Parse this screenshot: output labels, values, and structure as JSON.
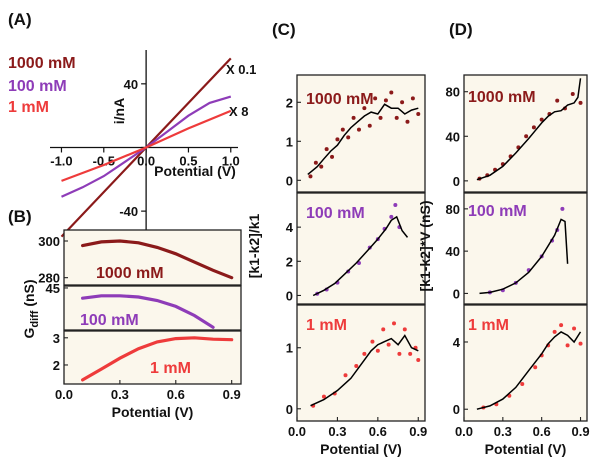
{
  "colors": {
    "c1000": "#8b1a1a",
    "c100": "#8e3cb8",
    "c1": "#ee3b3b",
    "fit": "#000000",
    "panel_bg": "#fbf7ec"
  },
  "chart_data": [
    {
      "panel": "(A)",
      "type": "line",
      "xlabel": "Potential (V)",
      "ylabel": "i/nA",
      "xlim": [
        -1.1,
        1.05
      ],
      "ylim": [
        -55,
        60
      ],
      "xticks": [
        -1.0,
        -0.5,
        0.0,
        0.5,
        1.0
      ],
      "xtick_labels": [
        "-1.0",
        "-0.5",
        "0.0",
        "0.5",
        "1.0"
      ],
      "yticks": [
        -40,
        0,
        40
      ],
      "ytick_labels": [
        "-40",
        "0",
        "40"
      ],
      "legend": [
        "1000 mM",
        "100 mM",
        "1 mM"
      ],
      "annotations": [
        "X 0.1",
        "X 8"
      ],
      "series": [
        {
          "name": "1000 mM",
          "color_key": "c1000",
          "x": [
            -1.0,
            0.0,
            1.0
          ],
          "y": [
            -56,
            0,
            56
          ]
        },
        {
          "name": "100 mM",
          "color_key": "c100",
          "x": [
            -1.0,
            -0.75,
            -0.5,
            -0.25,
            0.0,
            0.25,
            0.5,
            0.75,
            1.0
          ],
          "y": [
            -31,
            -25,
            -18,
            -9,
            0,
            10,
            20,
            28,
            32
          ]
        },
        {
          "name": "1 mM",
          "color_key": "c1",
          "x": [
            -1.0,
            -0.5,
            0.0,
            0.5,
            1.0
          ],
          "y": [
            -21,
            -11,
            0,
            12,
            23
          ]
        }
      ]
    },
    {
      "panel": "(B)",
      "type": "scatter",
      "xlabel": "Potential (V)",
      "ylabel": "G",
      "ylabel_sub": "diff",
      "ylabel_suffix": " (nS)",
      "xlim": [
        0.0,
        0.95
      ],
      "xticks": [
        0.0,
        0.3,
        0.6,
        0.9
      ],
      "xtick_labels": [
        "0.0",
        "0.3",
        "0.6",
        "0.9"
      ],
      "subplots": [
        {
          "label": "1000 mM",
          "color_key": "c1000",
          "ylim": [
            276,
            306
          ],
          "yticks": [
            280,
            300
          ],
          "ytick_labels": [
            "280",
            "300"
          ],
          "x": [
            0.1,
            0.2,
            0.3,
            0.4,
            0.5,
            0.6,
            0.7,
            0.8,
            0.9
          ],
          "y": [
            297.5,
            299.5,
            300,
            299,
            296.5,
            293,
            288.5,
            284,
            280
          ]
        },
        {
          "label": "100 mM",
          "color_key": "c100",
          "ylim": [
            34.3,
            45.5
          ],
          "yticks": [
            45
          ],
          "ytick_labels": [
            "45"
          ],
          "x": [
            0.1,
            0.2,
            0.3,
            0.4,
            0.5,
            0.6,
            0.7,
            0.8
          ],
          "y": [
            42.4,
            43.0,
            43.0,
            42.7,
            41.8,
            40.3,
            38.0,
            35.0
          ]
        },
        {
          "label": "1 mM",
          "color_key": "c1",
          "ylim": [
            1.3,
            3.25
          ],
          "yticks": [
            2,
            3
          ],
          "ytick_labels": [
            "2",
            "3"
          ],
          "x": [
            0.1,
            0.2,
            0.3,
            0.4,
            0.5,
            0.6,
            0.7,
            0.8,
            0.9
          ],
          "y": [
            1.45,
            1.85,
            2.25,
            2.6,
            2.85,
            2.97,
            3.0,
            2.95,
            2.93
          ]
        }
      ]
    },
    {
      "panel": "(C)",
      "type": "scatter",
      "xlabel": "Potential (V)",
      "ylabel": "[k1-k2]/k1",
      "xlim": [
        0.0,
        0.95
      ],
      "xticks": [
        0.0,
        0.3,
        0.6,
        0.9
      ],
      "xtick_labels": [
        "0.0",
        "0.3",
        "0.6",
        "0.9"
      ],
      "subplots": [
        {
          "label": "1000 mM",
          "color_key": "c1000",
          "ylim": [
            -0.3,
            2.7
          ],
          "yticks": [
            0,
            1,
            2
          ],
          "ytick_labels": [
            "0",
            "1",
            "2"
          ],
          "fit_x": [
            0.08,
            0.15,
            0.2,
            0.25,
            0.3,
            0.35,
            0.4,
            0.45,
            0.5,
            0.55,
            0.6,
            0.65,
            0.7,
            0.75,
            0.8,
            0.85,
            0.9
          ],
          "fit_y": [
            0.15,
            0.35,
            0.55,
            0.75,
            0.9,
            1.15,
            1.35,
            1.5,
            1.65,
            1.75,
            1.7,
            1.95,
            1.85,
            1.85,
            1.7,
            1.8,
            1.85
          ],
          "scatter_x": [
            0.1,
            0.14,
            0.18,
            0.22,
            0.26,
            0.3,
            0.34,
            0.38,
            0.42,
            0.46,
            0.5,
            0.54,
            0.58,
            0.62,
            0.66,
            0.7,
            0.74,
            0.78,
            0.82,
            0.86,
            0.9
          ],
          "scatter_y": [
            0.1,
            0.45,
            0.35,
            0.8,
            0.6,
            1.05,
            1.3,
            1.1,
            1.6,
            1.3,
            1.85,
            1.4,
            2.1,
            1.6,
            2.05,
            2.25,
            1.6,
            2.0,
            1.5,
            2.1,
            1.7
          ]
        },
        {
          "label": "100 mM",
          "color_key": "c100",
          "ylim": [
            -0.5,
            6.0
          ],
          "yticks": [
            0,
            2,
            4
          ],
          "ytick_labels": [
            "0",
            "2",
            "4"
          ],
          "fit_x": [
            0.12,
            0.2,
            0.28,
            0.36,
            0.44,
            0.52,
            0.6,
            0.66,
            0.7,
            0.74,
            0.78,
            0.82
          ],
          "fit_y": [
            0.0,
            0.3,
            0.7,
            1.3,
            1.9,
            2.6,
            3.3,
            3.9,
            4.4,
            4.6,
            3.8,
            3.4
          ],
          "scatter_x": [
            0.15,
            0.22,
            0.3,
            0.38,
            0.46,
            0.54,
            0.6,
            0.65,
            0.7,
            0.73,
            0.76
          ],
          "scatter_y": [
            0.1,
            0.35,
            0.75,
            1.4,
            1.9,
            2.8,
            3.3,
            3.9,
            4.6,
            5.3,
            4.0
          ]
        },
        {
          "label": "1 mM",
          "color_key": "c1",
          "ylim": [
            -0.2,
            1.7
          ],
          "yticks": [
            0,
            1
          ],
          "ytick_labels": [
            "0",
            "1"
          ],
          "fit_x": [
            0.1,
            0.2,
            0.3,
            0.4,
            0.5,
            0.55,
            0.6,
            0.65,
            0.7,
            0.75,
            0.8,
            0.85,
            0.9
          ],
          "fit_y": [
            0.05,
            0.15,
            0.3,
            0.5,
            0.8,
            0.95,
            1.05,
            1.1,
            1.15,
            1.05,
            1.2,
            1.0,
            0.95
          ],
          "scatter_x": [
            0.12,
            0.2,
            0.28,
            0.36,
            0.44,
            0.5,
            0.56,
            0.6,
            0.64,
            0.68,
            0.72,
            0.76,
            0.8,
            0.84,
            0.88,
            0.9
          ],
          "scatter_y": [
            0.05,
            0.2,
            0.25,
            0.55,
            0.7,
            0.9,
            1.1,
            0.95,
            1.3,
            1.05,
            1.4,
            0.9,
            1.3,
            0.9,
            1.0,
            0.8
          ]
        }
      ]
    },
    {
      "panel": "(D)",
      "type": "scatter",
      "xlabel": "Potential (V)",
      "ylabel": "[k1-k2]*V (nS)",
      "xlim": [
        0.0,
        0.95
      ],
      "xticks": [
        0.0,
        0.3,
        0.6,
        0.9
      ],
      "xtick_labels": [
        "0.0",
        "0.3",
        "0.6",
        "0.9"
      ],
      "subplots": [
        {
          "label": "1000 mM",
          "color_key": "c1000",
          "ylim": [
            -10,
            95
          ],
          "yticks": [
            0,
            40,
            80
          ],
          "ytick_labels": [
            "0",
            "40",
            "80"
          ],
          "fit_x": [
            0.1,
            0.2,
            0.3,
            0.4,
            0.5,
            0.55,
            0.6,
            0.65,
            0.7,
            0.75,
            0.8,
            0.85,
            0.88,
            0.9
          ],
          "fit_y": [
            1,
            5,
            13,
            25,
            38,
            45,
            52,
            58,
            62,
            63,
            68,
            70,
            75,
            92
          ],
          "scatter_x": [
            0.12,
            0.18,
            0.24,
            0.3,
            0.36,
            0.42,
            0.48,
            0.54,
            0.6,
            0.66,
            0.72,
            0.78,
            0.84,
            0.9
          ],
          "scatter_y": [
            2,
            5,
            10,
            15,
            22,
            30,
            40,
            48,
            55,
            60,
            72,
            65,
            78,
            70
          ]
        },
        {
          "label": "100 mM",
          "color_key": "c100",
          "ylim": [
            -10,
            95
          ],
          "yticks": [
            0,
            40,
            80
          ],
          "ytick_labels": [
            "0",
            "40",
            "80"
          ],
          "fit_x": [
            0.12,
            0.2,
            0.3,
            0.4,
            0.5,
            0.6,
            0.7,
            0.75,
            0.78,
            0.8
          ],
          "fit_y": [
            0,
            1,
            4,
            10,
            20,
            35,
            55,
            70,
            68,
            28
          ],
          "scatter_x": [
            0.2,
            0.3,
            0.4,
            0.5,
            0.6,
            0.68,
            0.72,
            0.76
          ],
          "scatter_y": [
            1,
            3,
            10,
            22,
            35,
            50,
            60,
            80
          ]
        },
        {
          "label": "1 mM",
          "color_key": "c1",
          "ylim": [
            -0.7,
            6.2
          ],
          "yticks": [
            0,
            4
          ],
          "ytick_labels": [
            "0",
            "4"
          ],
          "fit_x": [
            0.1,
            0.2,
            0.3,
            0.4,
            0.5,
            0.6,
            0.65,
            0.7,
            0.75,
            0.8,
            0.85,
            0.9
          ],
          "fit_y": [
            0,
            0.2,
            0.6,
            1.3,
            2.3,
            3.3,
            3.9,
            4.3,
            4.6,
            4.4,
            4.0,
            4.6
          ],
          "scatter_x": [
            0.15,
            0.25,
            0.35,
            0.45,
            0.55,
            0.6,
            0.65,
            0.7,
            0.75,
            0.8,
            0.85,
            0.9
          ],
          "scatter_y": [
            0.1,
            0.3,
            0.8,
            1.5,
            2.5,
            3.2,
            3.8,
            4.6,
            5.0,
            3.8,
            4.8,
            3.9
          ]
        }
      ]
    }
  ]
}
